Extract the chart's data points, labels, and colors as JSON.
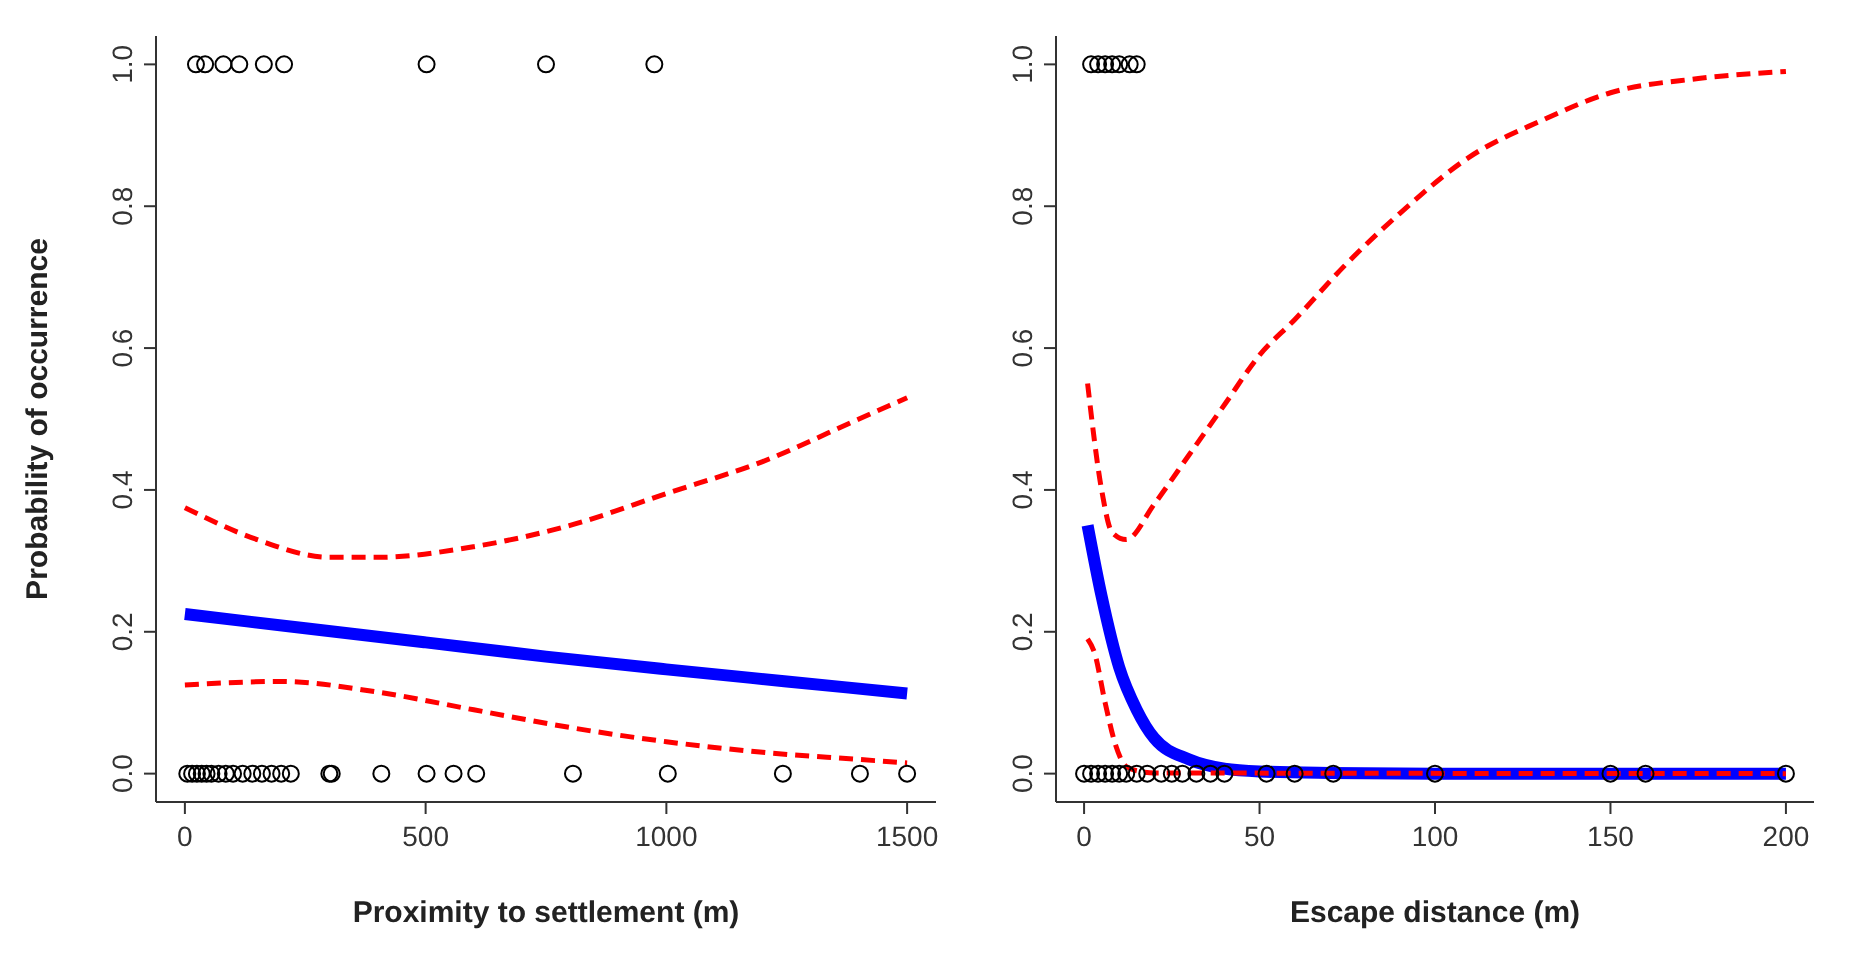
{
  "chart_data": [
    {
      "type": "scatter",
      "xlabel": "Proximity to settlement (m)",
      "ylabel": "Probability of occurrence",
      "xlim": [
        -60,
        1560
      ],
      "ylim": [
        -0.04,
        1.04
      ],
      "xticks": [
        0,
        500,
        1000,
        1500
      ],
      "yticks": [
        {
          "value": 0,
          "label": "0.0"
        },
        {
          "value": 0.2,
          "label": "0.2"
        },
        {
          "value": 0.4,
          "label": "0.4"
        },
        {
          "value": 0.6,
          "label": "0.6"
        },
        {
          "value": 0.8,
          "label": "0.8"
        },
        {
          "value": 1,
          "label": "1.0"
        }
      ],
      "grid": false,
      "legend": false,
      "series": [
        {
          "type": "scatter",
          "color": "#000000",
          "marker": "circle",
          "x": [
            23,
            42,
            80,
            113,
            164,
            206,
            502,
            750,
            975,
            5,
            15,
            25,
            35,
            45,
            55,
            70,
            85,
            100,
            120,
            140,
            160,
            180,
            200,
            220,
            300,
            305,
            408,
            502,
            558,
            605,
            806,
            1003,
            1242,
            1402,
            1500
          ],
          "values": [
            1,
            1,
            1,
            1,
            1,
            1,
            1,
            1,
            1,
            0,
            0,
            0,
            0,
            0,
            0,
            0,
            0,
            0,
            0,
            0,
            0,
            0,
            0,
            0,
            0,
            0,
            0,
            0,
            0,
            0,
            0,
            0,
            0,
            0,
            0
          ]
        },
        {
          "type": "line",
          "color": "#0000ff",
          "marker": "none",
          "line_style": "solid",
          "x": [
            0,
            250,
            500,
            750,
            1000,
            1250,
            1500
          ],
          "values": [
            0.225,
            0.205,
            0.185,
            0.165,
            0.147,
            0.13,
            0.113
          ]
        },
        {
          "type": "line",
          "color": "#ff0000",
          "marker": "none",
          "line_style": "dashed",
          "x": [
            0,
            150,
            300,
            400,
            600,
            800,
            1000,
            1200,
            1400,
            1500
          ],
          "values": [
            0.375,
            0.33,
            0.305,
            0.305,
            0.32,
            0.35,
            0.395,
            0.44,
            0.5,
            0.53
          ]
        },
        {
          "type": "line",
          "color": "#ff0000",
          "marker": "none",
          "line_style": "dashed",
          "x": [
            0,
            200,
            400,
            600,
            800,
            1000,
            1200,
            1400,
            1500
          ],
          "values": [
            0.125,
            0.13,
            0.115,
            0.09,
            0.065,
            0.045,
            0.03,
            0.02,
            0.015
          ]
        }
      ]
    },
    {
      "type": "scatter",
      "xlabel": "Escape distance (m)",
      "xlim": [
        -8,
        208
      ],
      "ylim": [
        -0.04,
        1.04
      ],
      "xticks": [
        0,
        50,
        100,
        150,
        200
      ],
      "yticks": [
        {
          "value": 0,
          "label": "0.0"
        },
        {
          "value": 0.2,
          "label": "0.2"
        },
        {
          "value": 0.4,
          "label": "0.4"
        },
        {
          "value": 0.6,
          "label": "0.6"
        },
        {
          "value": 0.8,
          "label": "0.8"
        },
        {
          "value": 1,
          "label": "1.0"
        }
      ],
      "grid": false,
      "legend": false,
      "series": [
        {
          "type": "scatter",
          "color": "#000000",
          "marker": "circle",
          "x": [
            2,
            4,
            6,
            8,
            10,
            13,
            15,
            0,
            2,
            4,
            6,
            8,
            10,
            12,
            15,
            18,
            22,
            25,
            28,
            32,
            36,
            40,
            52,
            60,
            71,
            100,
            150,
            160,
            200
          ],
          "values": [
            1,
            1,
            1,
            1,
            1,
            1,
            1,
            0,
            0,
            0,
            0,
            0,
            0,
            0,
            0,
            0,
            0,
            0,
            0,
            0,
            0,
            0,
            0,
            0,
            0,
            0,
            0,
            0,
            0
          ]
        },
        {
          "type": "line",
          "color": "#0000ff",
          "marker": "none",
          "line_style": "solid",
          "x": [
            1,
            5,
            10,
            15,
            20,
            30,
            40,
            50,
            70,
            100,
            200
          ],
          "values": [
            0.35,
            0.25,
            0.15,
            0.09,
            0.05,
            0.02,
            0.007,
            0.003,
            0.001,
            0,
            0
          ]
        },
        {
          "type": "line",
          "color": "#ff0000",
          "marker": "none",
          "line_style": "dashed",
          "x": [
            1,
            5,
            8,
            12,
            20,
            30,
            40,
            50,
            60,
            75,
            90,
            110,
            130,
            150,
            175,
            200
          ],
          "values": [
            0.55,
            0.4,
            0.34,
            0.33,
            0.38,
            0.45,
            0.52,
            0.59,
            0.64,
            0.72,
            0.79,
            0.87,
            0.92,
            0.96,
            0.98,
            0.99
          ]
        },
        {
          "type": "line",
          "color": "#ff0000",
          "marker": "none",
          "line_style": "dashed",
          "x": [
            1,
            3,
            6,
            9,
            12,
            16,
            20,
            200
          ],
          "values": [
            0.19,
            0.17,
            0.1,
            0.04,
            0.01,
            0.003,
            0.001,
            0
          ]
        }
      ]
    }
  ]
}
